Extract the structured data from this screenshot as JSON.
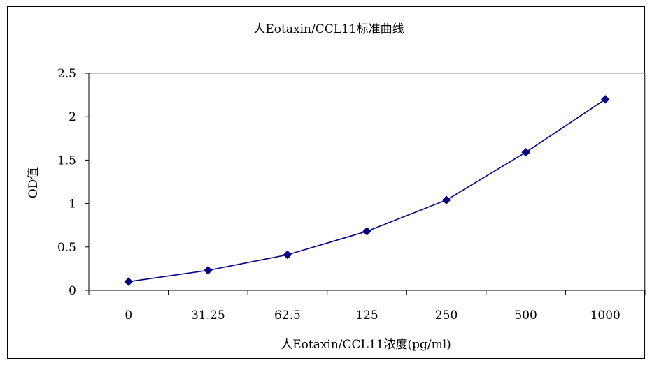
{
  "chart_data": {
    "type": "line",
    "title": "人Eotaxin/CCL11标准曲线",
    "xlabel": "人Eotaxin/CCL11浓度(pg/ml)",
    "ylabel": "OD值",
    "categories": [
      "0",
      "31.25",
      "62.5",
      "125",
      "250",
      "500",
      "1000"
    ],
    "series": [
      {
        "values": [
          0.1,
          0.23,
          0.41,
          0.68,
          1.04,
          1.59,
          2.2
        ],
        "color": "#000080",
        "marker": "diamond"
      }
    ],
    "ylim": [
      0,
      2.5
    ],
    "yticks": [
      "0",
      "0.5",
      "1",
      "1.5",
      "2",
      "2.5"
    ],
    "grid": false,
    "legend": "none"
  }
}
